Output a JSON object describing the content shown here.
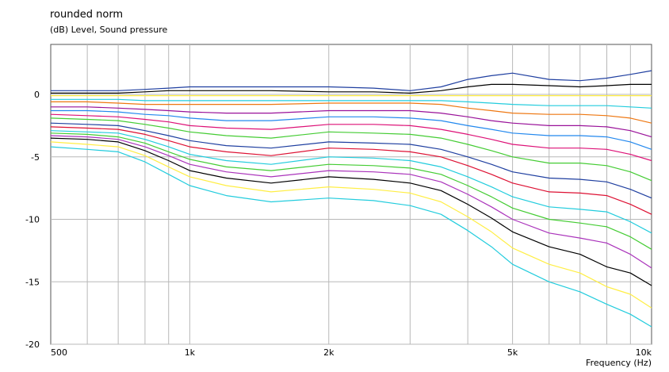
{
  "chart_data": {
    "type": "line",
    "title": "rounded norm",
    "ylabel": "(dB)  Level, Sound pressure",
    "xlabel": "Frequency  (Hz)",
    "xscale": "log",
    "xlim": [
      500,
      10000
    ],
    "ylim": [
      -20,
      4
    ],
    "grid": true,
    "x_ticks": [
      {
        "value": 500,
        "label": "500"
      },
      {
        "value": 1000,
        "label": "1k"
      },
      {
        "value": 2000,
        "label": "2k"
      },
      {
        "value": 5000,
        "label": "5k"
      },
      {
        "value": 10000,
        "label": "10k"
      }
    ],
    "y_ticks": [
      {
        "value": 0,
        "label": "0"
      },
      {
        "value": -5,
        "label": "-5"
      },
      {
        "value": -10,
        "label": "-10"
      },
      {
        "value": -15,
        "label": "-15"
      },
      {
        "value": -20,
        "label": "-20"
      }
    ],
    "x": [
      500,
      600,
      700,
      800,
      900,
      1000,
      1200,
      1500,
      2000,
      2500,
      3000,
      3500,
      4000,
      4500,
      5000,
      6000,
      7000,
      8000,
      9000,
      10000
    ],
    "series": [
      {
        "color": "#1f3fa0",
        "values": [
          0.3,
          0.3,
          0.3,
          0.4,
          0.5,
          0.6,
          0.6,
          0.6,
          0.6,
          0.5,
          0.3,
          0.6,
          1.2,
          1.5,
          1.7,
          1.2,
          1.1,
          1.3,
          1.6,
          1.9
        ]
      },
      {
        "color": "#000000",
        "values": [
          0.1,
          0.1,
          0.1,
          0.2,
          0.3,
          0.3,
          0.3,
          0.3,
          0.2,
          0.2,
          0.1,
          0.3,
          0.6,
          0.8,
          0.8,
          0.7,
          0.6,
          0.7,
          0.8,
          0.8
        ]
      },
      {
        "color": "#ffee44",
        "values": [
          -0.1,
          -0.1,
          -0.1,
          -0.1,
          -0.1,
          -0.1,
          -0.1,
          -0.1,
          -0.1,
          -0.1,
          -0.1,
          -0.1,
          -0.1,
          -0.1,
          -0.1,
          -0.1,
          -0.1,
          -0.1,
          -0.1,
          -0.1
        ]
      },
      {
        "color": "#22ccdd",
        "values": [
          -0.4,
          -0.4,
          -0.4,
          -0.5,
          -0.5,
          -0.5,
          -0.5,
          -0.5,
          -0.5,
          -0.5,
          -0.5,
          -0.5,
          -0.6,
          -0.7,
          -0.8,
          -0.9,
          -0.9,
          -0.9,
          -1.0,
          -1.1
        ]
      },
      {
        "color": "#ee7711",
        "values": [
          -0.6,
          -0.6,
          -0.7,
          -0.8,
          -0.8,
          -0.8,
          -0.8,
          -0.8,
          -0.7,
          -0.7,
          -0.7,
          -0.8,
          -1.1,
          -1.3,
          -1.5,
          -1.6,
          -1.6,
          -1.7,
          -1.9,
          -2.3
        ]
      },
      {
        "color": "#991199",
        "values": [
          -1.0,
          -1.0,
          -1.1,
          -1.2,
          -1.3,
          -1.4,
          -1.5,
          -1.5,
          -1.3,
          -1.3,
          -1.3,
          -1.5,
          -1.8,
          -2.1,
          -2.3,
          -2.5,
          -2.5,
          -2.6,
          -2.9,
          -3.4
        ]
      },
      {
        "color": "#2288ee",
        "values": [
          -1.3,
          -1.3,
          -1.4,
          -1.6,
          -1.7,
          -1.9,
          -2.1,
          -2.1,
          -1.8,
          -1.8,
          -1.9,
          -2.1,
          -2.5,
          -2.8,
          -3.1,
          -3.3,
          -3.3,
          -3.4,
          -3.8,
          -4.4
        ]
      },
      {
        "color": "#dd1177",
        "values": [
          -1.6,
          -1.7,
          -1.8,
          -2.0,
          -2.2,
          -2.5,
          -2.7,
          -2.8,
          -2.4,
          -2.4,
          -2.5,
          -2.8,
          -3.2,
          -3.6,
          -4.0,
          -4.3,
          -4.3,
          -4.4,
          -4.8,
          -5.3
        ]
      },
      {
        "color": "#44cc33",
        "values": [
          -1.9,
          -2.0,
          -2.1,
          -2.4,
          -2.7,
          -3.0,
          -3.3,
          -3.5,
          -3.0,
          -3.1,
          -3.2,
          -3.5,
          -4.0,
          -4.5,
          -5.0,
          -5.5,
          -5.5,
          -5.7,
          -6.2,
          -6.9
        ]
      },
      {
        "color": "#1f3fa0",
        "values": [
          -2.3,
          -2.4,
          -2.5,
          -2.9,
          -3.3,
          -3.7,
          -4.1,
          -4.3,
          -3.8,
          -3.9,
          -4.0,
          -4.4,
          -5.0,
          -5.6,
          -6.2,
          -6.7,
          -6.8,
          -7.0,
          -7.6,
          -8.3
        ]
      },
      {
        "color": "#dd1133",
        "values": [
          -2.6,
          -2.7,
          -2.8,
          -3.2,
          -3.7,
          -4.2,
          -4.6,
          -4.9,
          -4.3,
          -4.4,
          -4.6,
          -5.0,
          -5.7,
          -6.4,
          -7.1,
          -7.8,
          -7.9,
          -8.1,
          -8.8,
          -9.6
        ]
      },
      {
        "color": "#22ccdd",
        "values": [
          -2.9,
          -3.0,
          -3.1,
          -3.6,
          -4.2,
          -4.8,
          -5.3,
          -5.6,
          -5.0,
          -5.1,
          -5.3,
          -5.8,
          -6.6,
          -7.4,
          -8.2,
          -9.0,
          -9.2,
          -9.4,
          -10.2,
          -11.1
        ]
      },
      {
        "color": "#44cc33",
        "values": [
          -3.1,
          -3.2,
          -3.4,
          -3.9,
          -4.6,
          -5.2,
          -5.8,
          -6.1,
          -5.6,
          -5.7,
          -5.9,
          -6.4,
          -7.3,
          -8.2,
          -9.1,
          -10.0,
          -10.3,
          -10.6,
          -11.4,
          -12.4
        ]
      },
      {
        "color": "#aa33bb",
        "values": [
          -3.3,
          -3.4,
          -3.6,
          -4.2,
          -4.9,
          -5.6,
          -6.2,
          -6.6,
          -6.1,
          -6.2,
          -6.4,
          -7.0,
          -8.0,
          -9.0,
          -10.0,
          -11.1,
          -11.5,
          -11.9,
          -12.8,
          -13.9
        ]
      },
      {
        "color": "#000000",
        "values": [
          -3.5,
          -3.6,
          -3.8,
          -4.5,
          -5.3,
          -6.1,
          -6.7,
          -7.1,
          -6.6,
          -6.8,
          -7.1,
          -7.7,
          -8.8,
          -9.9,
          -11.0,
          -12.2,
          -12.8,
          -13.8,
          -14.3,
          -15.3
        ]
      },
      {
        "color": "#ffee44",
        "values": [
          -3.8,
          -4.0,
          -4.2,
          -4.9,
          -5.8,
          -6.6,
          -7.3,
          -7.8,
          -7.4,
          -7.6,
          -7.9,
          -8.6,
          -9.8,
          -11.0,
          -12.3,
          -13.6,
          -14.3,
          -15.4,
          -16.0,
          -17.1
        ]
      },
      {
        "color": "#22ccdd",
        "values": [
          -4.2,
          -4.4,
          -4.6,
          -5.4,
          -6.4,
          -7.3,
          -8.1,
          -8.6,
          -8.3,
          -8.5,
          -8.9,
          -9.6,
          -10.9,
          -12.2,
          -13.6,
          -15.0,
          -15.8,
          -16.8,
          -17.6,
          -18.6
        ]
      }
    ]
  }
}
